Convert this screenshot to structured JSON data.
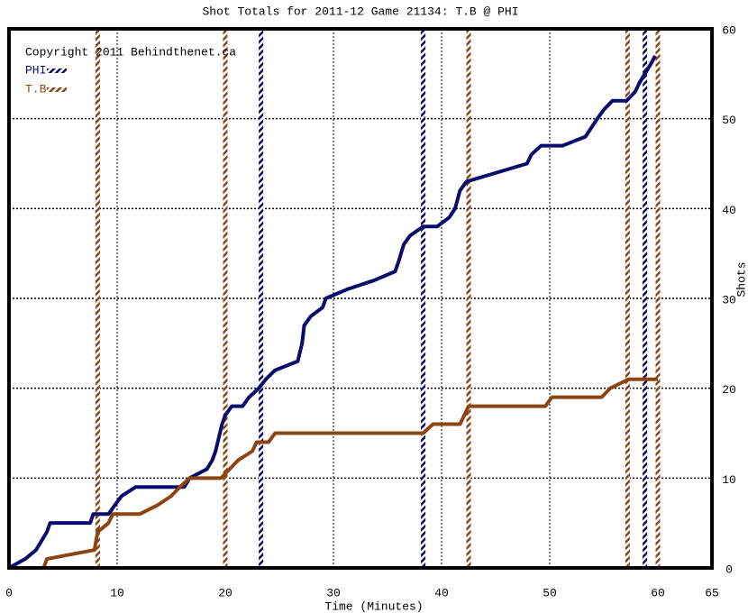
{
  "chart_data": {
    "type": "line",
    "title": "Shot Totals for 2011-12 Game 21134: T.B @ PHI",
    "copyright": "Copyright 2011 Behindthenet.ca",
    "x_label": "Time (Minutes)",
    "y_label": "Shots",
    "xlim": [
      0,
      65
    ],
    "xticks": [
      0,
      10,
      20,
      30,
      40,
      50,
      60,
      65
    ],
    "ylim": [
      0,
      60
    ],
    "yticks": [
      0,
      10,
      20,
      30,
      40,
      50,
      60
    ],
    "grid": true,
    "series": [
      {
        "name": "PHI",
        "color": "#0b0b6b",
        "x": [
          0,
          1.5,
          2.5,
          3,
          3.5,
          3.8,
          7.5,
          7.8,
          9.2,
          9.8,
          10.4,
          11.7,
          16.2,
          16.7,
          18.3,
          18.8,
          19.1,
          19.3,
          19.5,
          19.7,
          20,
          20.6,
          21.6,
          22.2,
          23.1,
          23.75,
          24.6,
          26.7,
          27.1,
          27.3,
          27.9,
          29,
          29.3,
          31.25,
          33.75,
          35.7,
          36,
          36.5,
          37.1,
          38.3,
          39.6,
          40.7,
          41.25,
          41.7,
          42.3,
          47.9,
          48.3,
          49.2,
          51.2,
          53.3,
          54.4,
          55,
          55.8,
          57.1,
          57.9,
          58.3,
          58.8,
          59.3,
          59.75
        ],
        "values": [
          0,
          1,
          2,
          3,
          4,
          5,
          5,
          6,
          6,
          7,
          8,
          9,
          9,
          10,
          11,
          12,
          13,
          14,
          15,
          16,
          17,
          18,
          18,
          19,
          20,
          21,
          22,
          23,
          25,
          27,
          28,
          29,
          30,
          31,
          32,
          33,
          34,
          36,
          37,
          38,
          38,
          39,
          40,
          42,
          43,
          45,
          46,
          47,
          47,
          48,
          50,
          51,
          52,
          52,
          53,
          54,
          55,
          56,
          57
        ],
        "goals": [
          23.3,
          38.3,
          58.8
        ]
      },
      {
        "name": "T.B",
        "color": "#8b4513",
        "x": [
          0,
          3.2,
          3.5,
          7.9,
          8.2,
          9.2,
          9.6,
          12.1,
          13.75,
          15,
          15.8,
          16.7,
          19.6,
          20.4,
          21.2,
          22.5,
          22.9,
          24,
          24.6,
          38.3,
          39.2,
          41.7,
          42.5,
          49.6,
          50.2,
          54.8,
          55.6,
          57.3,
          60
        ],
        "values": [
          0,
          0,
          1,
          2,
          4,
          5,
          6,
          6,
          7,
          8,
          9,
          10,
          10,
          11,
          12,
          13,
          14,
          14,
          15,
          15,
          16,
          16,
          18,
          18,
          19,
          19,
          20,
          21,
          21
        ],
        "goals": [
          8.2,
          20,
          42.5,
          57.2,
          60
        ]
      }
    ]
  }
}
